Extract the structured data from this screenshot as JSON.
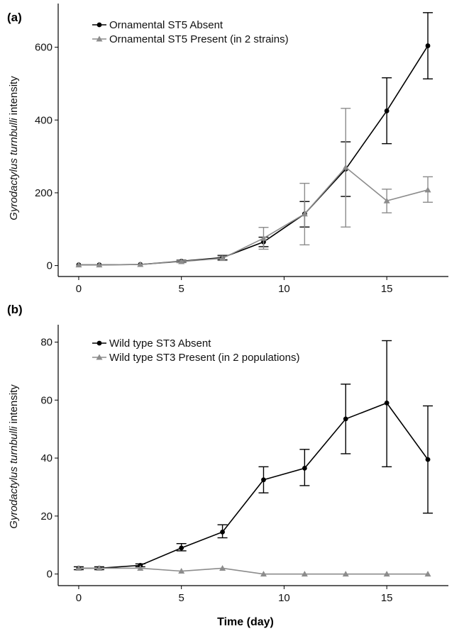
{
  "x_axis_title": "Time (day)",
  "chart_data": [
    {
      "panel_label": "(a)",
      "type": "line",
      "ylabel": {
        "italic": "Gyrodactylus turnbulli",
        "rest": " intensity"
      },
      "xlim": [
        -1,
        18
      ],
      "ylim": [
        -30,
        720
      ],
      "xticks": [
        0,
        5,
        10,
        15
      ],
      "yticks": [
        0,
        200,
        400,
        600
      ],
      "grid": false,
      "legend_position": "top-left",
      "series": [
        {
          "name": "Ornamental ST5 Absent",
          "color": "#000000",
          "marker": "circle",
          "x": [
            0,
            1,
            3,
            5,
            7,
            9,
            11,
            13,
            15,
            17
          ],
          "y": [
            2,
            2,
            3,
            12,
            22,
            65,
            142,
            265,
            425,
            604
          ],
          "err_low": [
            2,
            2,
            3,
            9,
            16,
            52,
            106,
            190,
            335,
            513
          ],
          "err_high": [
            2,
            2,
            3,
            15,
            28,
            78,
            176,
            340,
            516,
            695
          ]
        },
        {
          "name": "Ornamental ST5 Present",
          "legend_suffix": "  (in 2 strains)",
          "color": "#8c8c8c",
          "marker": "triangle",
          "x": [
            0,
            1,
            3,
            5,
            7,
            9,
            11,
            13,
            15,
            17
          ],
          "y": [
            2,
            2,
            3,
            11,
            20,
            75,
            142,
            270,
            178,
            208
          ],
          "err_low": [
            2,
            2,
            3,
            8,
            14,
            45,
            57,
            106,
            145,
            174
          ],
          "err_high": [
            2,
            2,
            3,
            14,
            26,
            105,
            226,
            432,
            210,
            244
          ]
        }
      ]
    },
    {
      "panel_label": "(b)",
      "type": "line",
      "ylabel": {
        "italic": "Gyrodactylus turnbulli",
        "rest": " intensity"
      },
      "xlim": [
        -1,
        18
      ],
      "ylim": [
        -4,
        86
      ],
      "xticks": [
        0,
        5,
        10,
        15
      ],
      "yticks": [
        0,
        20,
        40,
        60,
        80
      ],
      "grid": false,
      "legend_position": "top-left",
      "series": [
        {
          "name": "Wild type ST3 Absent",
          "color": "#000000",
          "marker": "circle",
          "x": [
            0,
            1,
            3,
            5,
            7,
            9,
            11,
            13,
            15,
            17
          ],
          "y": [
            2,
            2,
            3,
            9,
            14.5,
            32.5,
            36.5,
            53.5,
            59,
            39.5
          ],
          "err_low": [
            1.5,
            1.5,
            2.5,
            8,
            12.5,
            28,
            30.5,
            41.5,
            37,
            21
          ],
          "err_high": [
            2.5,
            2.5,
            3.5,
            10.5,
            17,
            37,
            43,
            65.5,
            80.5,
            58
          ]
        },
        {
          "name": "Wild type ST3 Present",
          "legend_suffix": " (in 2 populations)",
          "color": "#8c8c8c",
          "marker": "triangle",
          "x": [
            0,
            1,
            3,
            5,
            7,
            9,
            11,
            13,
            15,
            17
          ],
          "y": [
            2,
            2,
            2,
            1,
            2,
            0,
            0,
            0,
            0,
            0
          ],
          "err_low": [
            2,
            2,
            2,
            1,
            2,
            0,
            0,
            0,
            0,
            0
          ],
          "err_high": [
            2,
            2,
            2,
            1,
            2,
            0,
            0,
            0,
            0,
            0
          ]
        }
      ]
    }
  ]
}
